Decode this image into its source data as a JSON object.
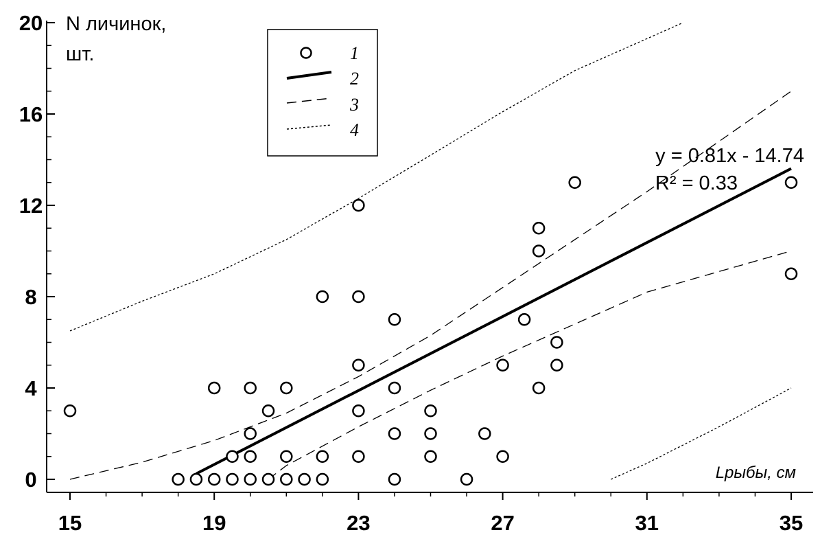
{
  "chart_data": {
    "type": "scatter",
    "xlabel": "Lрыбы, см",
    "ylabel_line1": "N личинок,",
    "ylabel_line2": "шт.",
    "xlim": [
      15,
      35
    ],
    "ylim": [
      0,
      20
    ],
    "xticks": [
      15,
      19,
      23,
      27,
      31,
      35
    ],
    "yticks": [
      0,
      4,
      8,
      12,
      16,
      20
    ],
    "grid": false,
    "legend_position": "top-left",
    "legend": [
      {
        "marker": "circle",
        "label": "1"
      },
      {
        "marker": "solid-line",
        "label": "2"
      },
      {
        "marker": "dashed-line",
        "label": "3"
      },
      {
        "marker": "dotted-line",
        "label": "4"
      }
    ],
    "annotations": {
      "equation": "y = 0.81x - 14.74",
      "r2": "R² = 0.33"
    },
    "points": [
      [
        15,
        3
      ],
      [
        18,
        0
      ],
      [
        18.5,
        0
      ],
      [
        19,
        0
      ],
      [
        19.5,
        0
      ],
      [
        20,
        0
      ],
      [
        20.5,
        0
      ],
      [
        21,
        0
      ],
      [
        21.5,
        0
      ],
      [
        22,
        0
      ],
      [
        19,
        4
      ],
      [
        19.5,
        1
      ],
      [
        20,
        1
      ],
      [
        20,
        2
      ],
      [
        20,
        4
      ],
      [
        20.5,
        3
      ],
      [
        21,
        1
      ],
      [
        21,
        4
      ],
      [
        22,
        1
      ],
      [
        22,
        8
      ],
      [
        23,
        1
      ],
      [
        23,
        3
      ],
      [
        23,
        5
      ],
      [
        23,
        8
      ],
      [
        23,
        12
      ],
      [
        24,
        0
      ],
      [
        24,
        2
      ],
      [
        24,
        4
      ],
      [
        24,
        7
      ],
      [
        25,
        1
      ],
      [
        25,
        2
      ],
      [
        25,
        3
      ],
      [
        26,
        0
      ],
      [
        26.5,
        2
      ],
      [
        27,
        1
      ],
      [
        27,
        5
      ],
      [
        27.6,
        7
      ],
      [
        28,
        4
      ],
      [
        28,
        10
      ],
      [
        28,
        11
      ],
      [
        28.5,
        5
      ],
      [
        28.5,
        6
      ],
      [
        29,
        13
      ],
      [
        35,
        9
      ],
      [
        35,
        13
      ]
    ],
    "series": [
      {
        "style": "solid",
        "x": [
          18.5,
          35
        ],
        "y": [
          0.245,
          13.61
        ]
      },
      {
        "style": "dashed",
        "x": [
          15,
          17,
          19,
          21,
          23,
          25,
          27,
          29,
          31,
          33,
          35
        ],
        "y": [
          0,
          0.75,
          1.7,
          2.9,
          4.5,
          6.3,
          8.4,
          10.5,
          12.6,
          14.8,
          17
        ]
      },
      {
        "style": "dashed",
        "x": [
          20.5,
          21,
          23,
          25,
          27,
          29,
          31,
          33,
          35
        ],
        "y": [
          0,
          0.6,
          2.3,
          3.9,
          5.4,
          6.8,
          8.2,
          9.1,
          10
        ]
      },
      {
        "style": "dotted",
        "x": [
          15,
          17,
          19,
          21,
          23,
          25,
          27,
          29,
          31,
          32
        ],
        "y": [
          6.5,
          7.8,
          9.0,
          10.5,
          12.3,
          14.2,
          16.1,
          17.9,
          19.3,
          20
        ]
      },
      {
        "style": "dotted",
        "x": [
          30,
          31,
          33,
          35
        ],
        "y": [
          0,
          0.7,
          2.3,
          4.0
        ]
      }
    ]
  }
}
